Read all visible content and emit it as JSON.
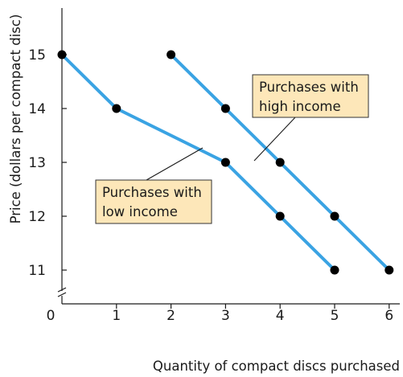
{
  "chart_data": {
    "type": "line",
    "title": "",
    "xlabel": "Quantity of compact discs purchased",
    "ylabel": "Price (dollars per compact disc)",
    "xlim": [
      0,
      6
    ],
    "ylim": [
      11,
      15
    ],
    "x_ticks": [
      "0",
      "1",
      "2",
      "3",
      "4",
      "5",
      "6"
    ],
    "y_ticks": [
      "11",
      "12",
      "13",
      "14",
      "15"
    ],
    "y_axis_break": true,
    "grid": false,
    "line_color": "#3aa3e3",
    "marker_color": "#000000",
    "annotation_fill": "#fde7b9",
    "series": [
      {
        "name": "Purchases with low income",
        "x": [
          0,
          1,
          3,
          4,
          5
        ],
        "y": [
          15,
          14,
          13,
          12,
          11
        ]
      },
      {
        "name": "Purchases with high income",
        "x": [
          2,
          3,
          4,
          5,
          6
        ],
        "y": [
          15,
          14,
          13,
          12,
          11
        ]
      }
    ],
    "annotations": [
      {
        "series": 1,
        "lines": [
          "Purchases with",
          "high income"
        ]
      },
      {
        "series": 0,
        "lines": [
          "Purchases with",
          "low income"
        ]
      }
    ]
  }
}
